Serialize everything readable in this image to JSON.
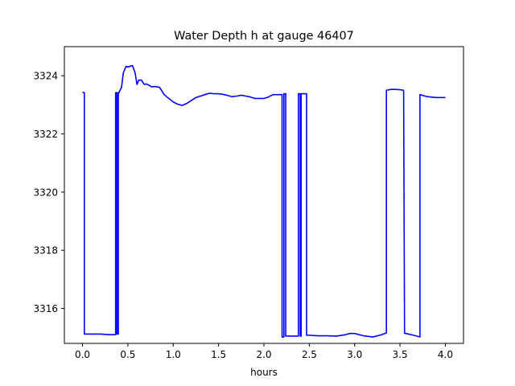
{
  "chart_data": {
    "type": "line",
    "title": "Water Depth h at gauge 46407",
    "xlabel": "hours",
    "ylabel": "",
    "xlim": [
      -0.2,
      4.2
    ],
    "ylim": [
      3314.8,
      3325.0
    ],
    "xticks": [
      0.0,
      0.5,
      1.0,
      1.5,
      2.0,
      2.5,
      3.0,
      3.5,
      4.0
    ],
    "xtick_labels": [
      "0.0",
      "0.5",
      "1.0",
      "1.5",
      "2.0",
      "2.5",
      "3.0",
      "3.5",
      "4.0"
    ],
    "yticks": [
      3316,
      3318,
      3320,
      3322,
      3324
    ],
    "ytick_labels": [
      "3316",
      "3318",
      "3320",
      "3322",
      "3324"
    ],
    "grid": false,
    "series": [
      {
        "color": "#0000ff",
        "x": [
          0.0,
          0.02,
          0.02,
          0.1,
          0.2,
          0.3,
          0.35,
          0.365,
          0.365,
          0.38,
          0.38,
          0.395,
          0.395,
          0.405,
          0.405,
          0.43,
          0.45,
          0.48,
          0.5,
          0.55,
          0.58,
          0.6,
          0.62,
          0.65,
          0.68,
          0.7,
          0.73,
          0.76,
          0.8,
          0.85,
          0.9,
          0.95,
          1.0,
          1.05,
          1.1,
          1.15,
          1.2,
          1.25,
          1.3,
          1.35,
          1.4,
          1.45,
          1.5,
          1.55,
          1.6,
          1.65,
          1.7,
          1.75,
          1.8,
          1.85,
          1.9,
          1.95,
          2.0,
          2.05,
          2.1,
          2.15,
          2.2,
          2.2,
          2.22,
          2.22,
          2.24,
          2.24,
          2.25,
          2.25,
          2.38,
          2.38,
          2.4,
          2.4,
          2.41,
          2.41,
          2.42,
          2.42,
          2.47,
          2.47,
          2.5,
          2.6,
          2.7,
          2.8,
          2.9,
          2.95,
          3.0,
          3.1,
          3.2,
          3.3,
          3.35,
          3.35,
          3.4,
          3.45,
          3.5,
          3.54,
          3.55,
          3.65,
          3.72,
          3.72,
          3.8,
          3.9,
          4.0
        ],
        "y": [
          3323.43,
          3323.42,
          3315.12,
          3315.12,
          3315.12,
          3315.1,
          3315.1,
          3315.1,
          3323.42,
          3323.42,
          3315.12,
          3315.12,
          3323.42,
          3323.42,
          3323.45,
          3323.6,
          3324.1,
          3324.32,
          3324.3,
          3324.35,
          3324.1,
          3323.7,
          3323.85,
          3323.85,
          3323.7,
          3323.72,
          3323.68,
          3323.62,
          3323.63,
          3323.6,
          3323.35,
          3323.22,
          3323.1,
          3323.02,
          3322.98,
          3323.05,
          3323.15,
          3323.25,
          3323.3,
          3323.35,
          3323.4,
          3323.38,
          3323.38,
          3323.36,
          3323.32,
          3323.28,
          3323.3,
          3323.33,
          3323.3,
          3323.27,
          3323.22,
          3323.22,
          3323.22,
          3323.27,
          3323.35,
          3323.35,
          3323.35,
          3315.02,
          3315.02,
          3323.38,
          3323.38,
          3315.05,
          3315.05,
          3315.05,
          3315.05,
          3323.38,
          3323.38,
          3315.05,
          3315.05,
          3323.38,
          3323.38,
          3323.38,
          3323.38,
          3315.08,
          3315.08,
          3315.06,
          3315.06,
          3315.05,
          3315.1,
          3315.14,
          3315.14,
          3315.06,
          3315.02,
          3315.1,
          3315.16,
          3323.5,
          3323.53,
          3323.53,
          3323.52,
          3323.5,
          3315.15,
          3315.08,
          3315.02,
          3323.35,
          3323.28,
          3323.25,
          3323.25
        ]
      }
    ]
  }
}
